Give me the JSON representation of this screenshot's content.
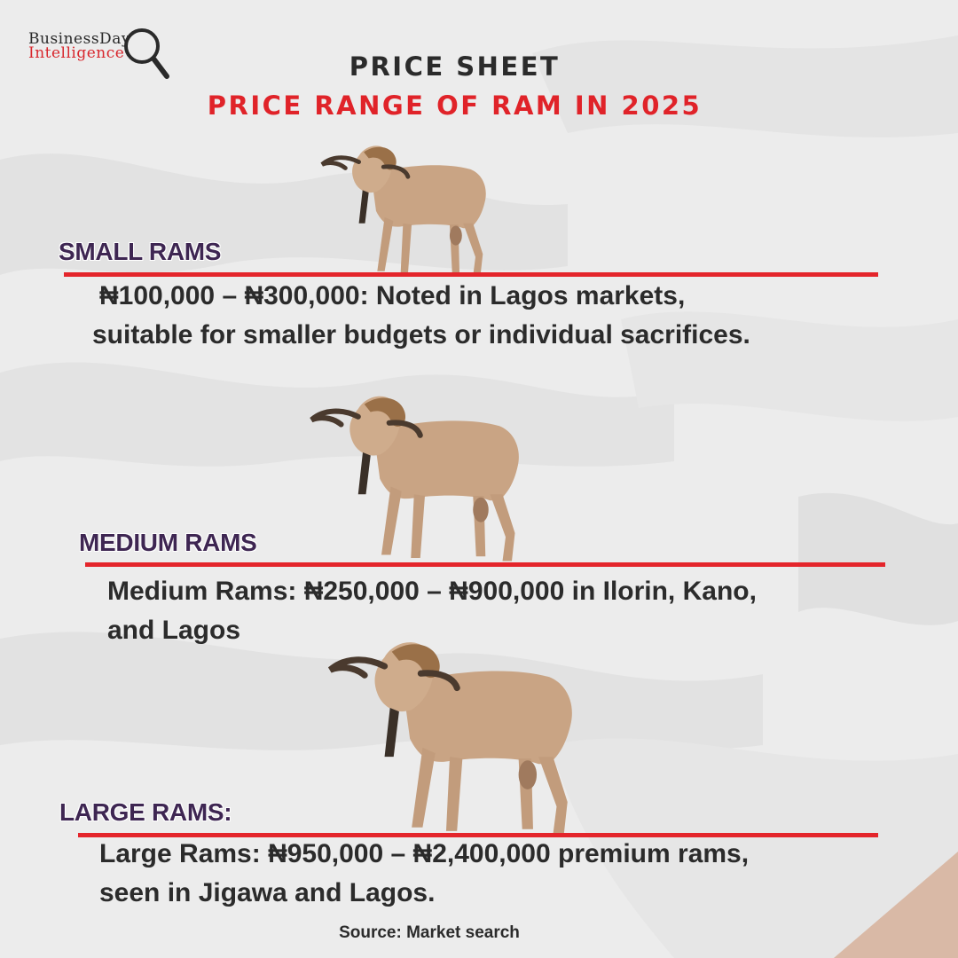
{
  "logo": {
    "line1": "BusinessDay",
    "line2": "Intelligence"
  },
  "header": {
    "title": "PRICE SHEET",
    "subtitle": "PRICE RANGE OF RAM IN 2025"
  },
  "sections": [
    {
      "title": "SMALL RAMS",
      "line1": "₦100,000 – ₦300,000: Noted in Lagos markets,",
      "line2": "suitable for smaller budgets or individual sacrifices."
    },
    {
      "title": "MEDIUM RAMS",
      "line1": "Medium Rams: ₦250,000 – ₦900,000 in Ilorin, Kano,",
      "line2": "and Lagos"
    },
    {
      "title": "LARGE RAMS:",
      "line1": "Large Rams: ₦950,000 – ₦2,400,000 premium rams,",
      "line2": "seen in Jigawa and Lagos."
    }
  ],
  "footer": {
    "source": "Source: Market search"
  },
  "colors": {
    "accent_red": "#e4252b",
    "section_title": "#3e2652",
    "text": "#2b2b2b",
    "background": "#ececec"
  }
}
